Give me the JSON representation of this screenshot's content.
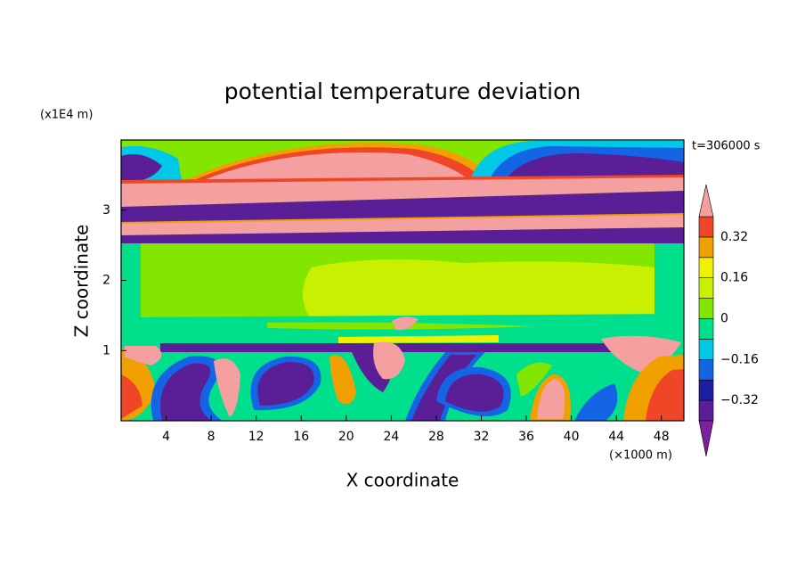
{
  "chart_data": {
    "type": "contour",
    "title": "potential temperature deviation",
    "time_label": "t=306000 s",
    "xlabel": "X coordinate",
    "ylabel": "Z coordinate",
    "x_unit": "(×1000 m)",
    "y_unit": "(x1E4 m)",
    "xlim": [
      0,
      50
    ],
    "ylim": [
      0,
      4
    ],
    "xticks": [
      4,
      8,
      12,
      16,
      20,
      24,
      28,
      32,
      36,
      40,
      44,
      48
    ],
    "yticks": [
      1,
      2,
      3
    ],
    "colorbar": {
      "levels": [
        -0.4,
        -0.32,
        -0.24,
        -0.16,
        -0.08,
        0,
        0.08,
        0.16,
        0.24,
        0.32,
        0.4
      ],
      "colors": [
        "#7d1f9e",
        "#5a1e96",
        "#1e1ea0",
        "#1464e6",
        "#00c8e6",
        "#00e08c",
        "#82e600",
        "#c8f000",
        "#f0f000",
        "#f0a000",
        "#f04628",
        "#f4a0a0"
      ],
      "ticks": [
        {
          "value": -0.32,
          "label": "−0.32"
        },
        {
          "value": -0.16,
          "label": "−0.16"
        },
        0,
        0.16,
        0.32
      ]
    }
  }
}
